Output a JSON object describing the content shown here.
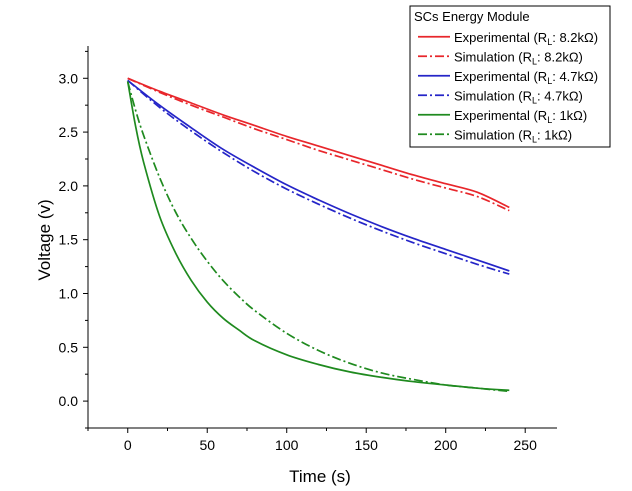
{
  "chart_data": {
    "type": "line",
    "title": "",
    "xlabel": "Time (s)",
    "ylabel": "Voltage (v)",
    "xlim": [
      -25,
      270
    ],
    "ylim": [
      -0.25,
      3.3
    ],
    "xticks": [
      0,
      50,
      100,
      150,
      200,
      250
    ],
    "yticks": [
      0.0,
      0.5,
      1.0,
      1.5,
      2.0,
      2.5,
      3.0
    ],
    "xtick_labels": [
      "0",
      "50",
      "100",
      "150",
      "200",
      "250"
    ],
    "ytick_labels": [
      "0.0",
      "0.5",
      "1.0",
      "1.5",
      "2.0",
      "2.5",
      "3.0"
    ],
    "grid": false,
    "legend": {
      "title": "SCs Energy Module",
      "placement": "top-right"
    },
    "series": [
      {
        "label_main": "Experimental (R",
        "label_sub": "L",
        "label_tail": ": 8.2kΩ)",
        "color": "#e8262b",
        "dash": "solid",
        "x": [
          0,
          20,
          40,
          60,
          80,
          100,
          120,
          140,
          160,
          180,
          200,
          220,
          240
        ],
        "y": [
          3.0,
          2.88,
          2.77,
          2.66,
          2.56,
          2.46,
          2.37,
          2.28,
          2.19,
          2.1,
          2.02,
          1.94,
          1.8
        ]
      },
      {
        "label_main": "Simulation (R",
        "label_sub": "L",
        "label_tail": ": 8.2kΩ)",
        "color": "#e8262b",
        "dash": "dashdot",
        "x": [
          0,
          20,
          40,
          60,
          80,
          100,
          120,
          140,
          160,
          180,
          200,
          220,
          240
        ],
        "y": [
          3.0,
          2.87,
          2.75,
          2.64,
          2.53,
          2.43,
          2.33,
          2.24,
          2.15,
          2.06,
          1.98,
          1.9,
          1.77
        ]
      },
      {
        "label_main": "Experimental (R",
        "label_sub": "L",
        "label_tail": ": 4.7kΩ)",
        "color": "#2525c8",
        "dash": "solid",
        "x": [
          0,
          20,
          40,
          60,
          80,
          100,
          120,
          140,
          160,
          180,
          200,
          220,
          240
        ],
        "y": [
          2.98,
          2.75,
          2.54,
          2.34,
          2.17,
          2.01,
          1.87,
          1.74,
          1.62,
          1.51,
          1.41,
          1.31,
          1.21
        ]
      },
      {
        "label_main": "Simulation (R",
        "label_sub": "L",
        "label_tail": ": 4.7kΩ)",
        "color": "#2525c8",
        "dash": "dashdot",
        "x": [
          0,
          20,
          40,
          60,
          80,
          100,
          120,
          140,
          160,
          180,
          200,
          220,
          240
        ],
        "y": [
          2.98,
          2.73,
          2.51,
          2.31,
          2.13,
          1.97,
          1.83,
          1.7,
          1.58,
          1.47,
          1.37,
          1.27,
          1.18
        ]
      },
      {
        "label_main": "Experimental (R",
        "label_sub": "L",
        "label_tail": ": 1kΩ)",
        "color": "#1f8a1f",
        "dash": "solid",
        "x": [
          0,
          5,
          10,
          20,
          30,
          40,
          50,
          60,
          70,
          80,
          100,
          120,
          140,
          160,
          180,
          200,
          220,
          240
        ],
        "y": [
          2.97,
          2.55,
          2.22,
          1.72,
          1.38,
          1.12,
          0.92,
          0.77,
          0.66,
          0.56,
          0.43,
          0.34,
          0.27,
          0.22,
          0.18,
          0.15,
          0.12,
          0.1
        ]
      },
      {
        "label_main": "Simulation (R",
        "label_sub": "L",
        "label_tail": ": 1kΩ)",
        "color": "#1f8a1f",
        "dash": "dashdot",
        "x": [
          0,
          5,
          10,
          20,
          30,
          40,
          50,
          60,
          70,
          80,
          100,
          120,
          140,
          160,
          180,
          200,
          220,
          240
        ],
        "y": [
          2.97,
          2.7,
          2.47,
          2.08,
          1.76,
          1.51,
          1.3,
          1.12,
          0.97,
          0.84,
          0.63,
          0.47,
          0.35,
          0.26,
          0.2,
          0.15,
          0.12,
          0.09
        ]
      }
    ]
  }
}
